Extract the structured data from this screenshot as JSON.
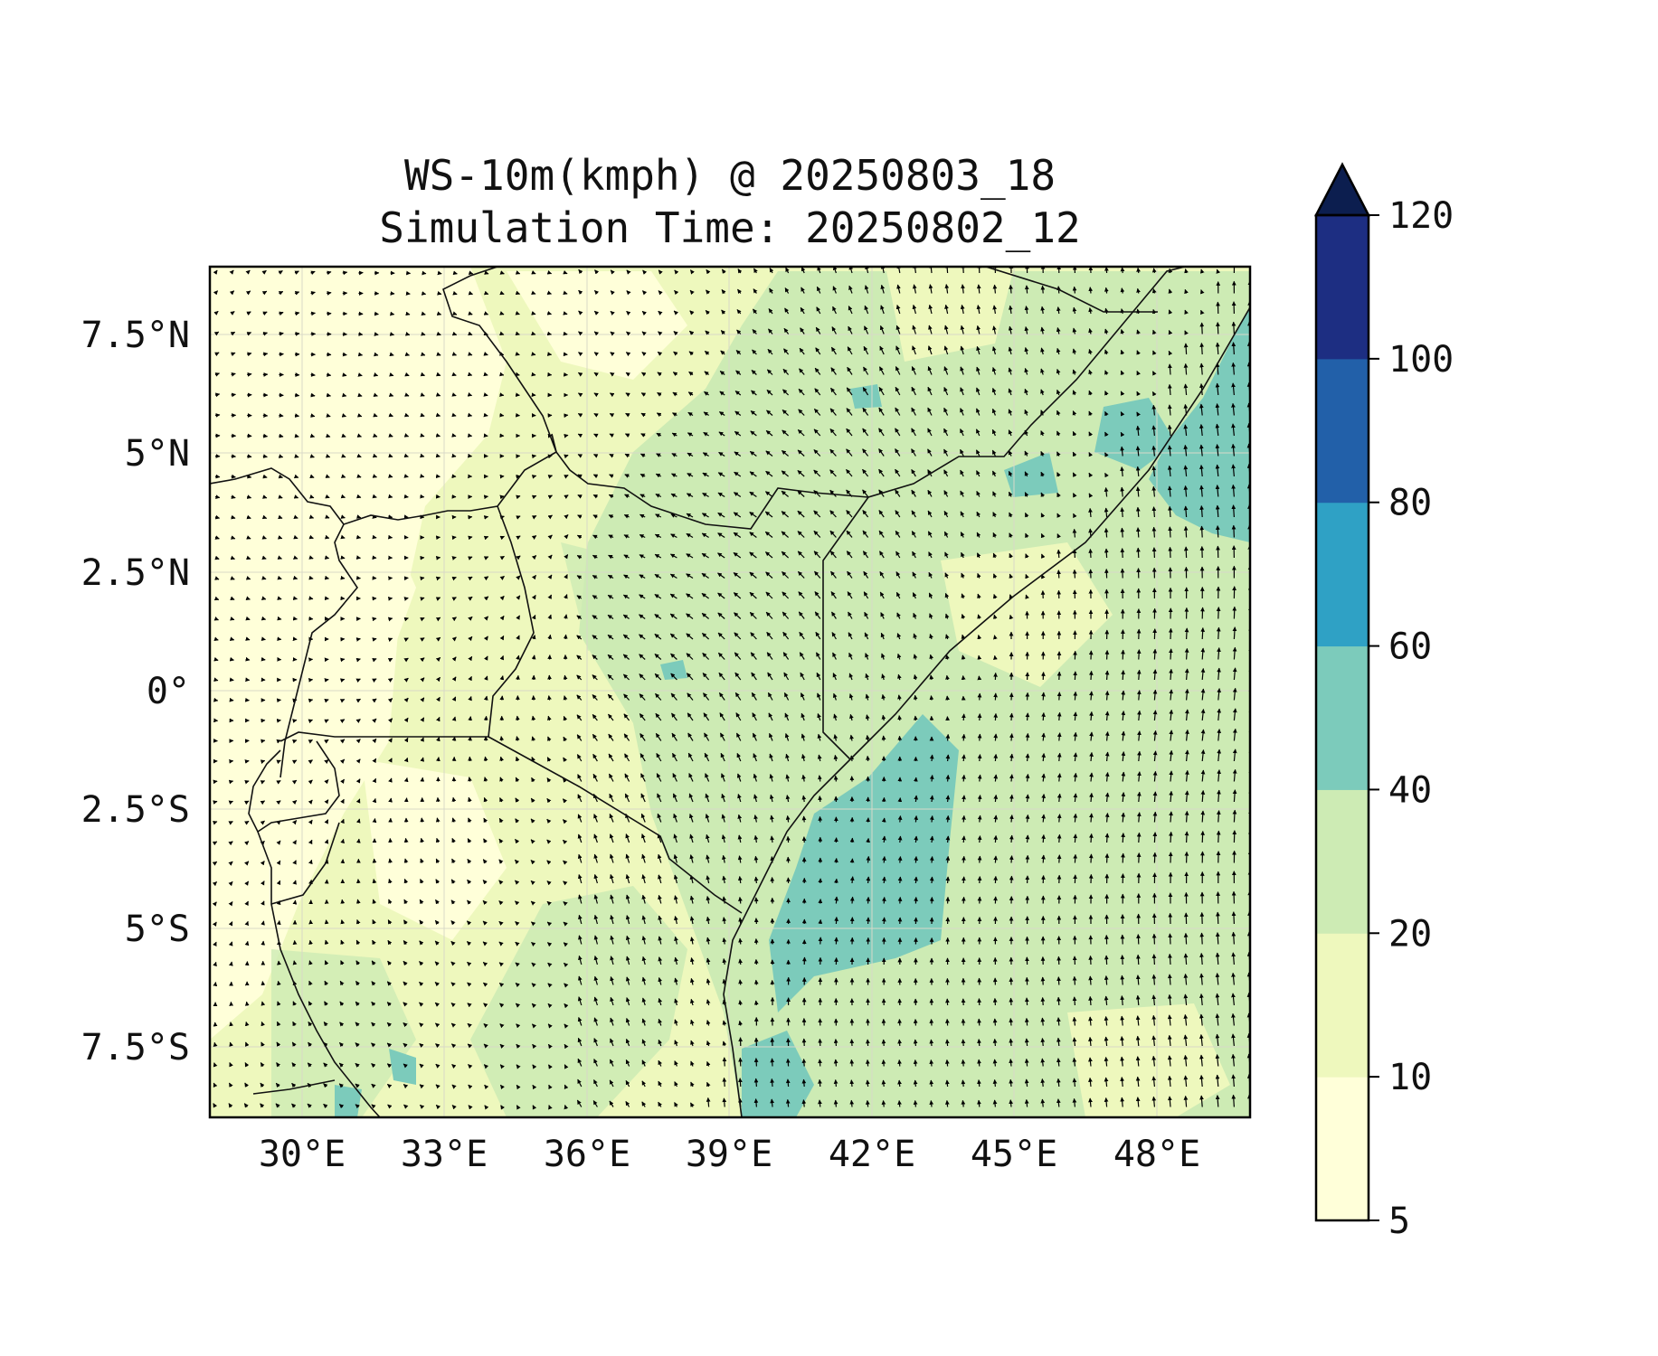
{
  "title": {
    "line1": "WS-10m(kmph) @ 20250803_18",
    "line2": "Simulation Time: 20250802_12"
  },
  "map": {
    "projection": "PlateCarree",
    "lon_range": [
      27.5,
      50.2
    ],
    "lat_range": [
      -9.0,
      8.9
    ],
    "x_ticks": [
      {
        "value": 30,
        "label": "30°E"
      },
      {
        "value": 33,
        "label": "33°E"
      },
      {
        "value": 36,
        "label": "36°E"
      },
      {
        "value": 39,
        "label": "39°E"
      },
      {
        "value": 42,
        "label": "42°E"
      },
      {
        "value": 45,
        "label": "45°E"
      },
      {
        "value": 48,
        "label": "48°E"
      }
    ],
    "y_ticks": [
      {
        "value": 7.5,
        "label": "7.5°N"
      },
      {
        "value": 5,
        "label": "5°N"
      },
      {
        "value": 2.5,
        "label": "2.5°N"
      },
      {
        "value": 0,
        "label": "0°"
      },
      {
        "value": -2.5,
        "label": "2.5°S"
      },
      {
        "value": -5,
        "label": "5°S"
      },
      {
        "value": -7.5,
        "label": "7.5°S"
      }
    ],
    "gridlines": true,
    "features": [
      "coastline",
      "country-borders",
      "wind-vectors",
      "filled-contours"
    ]
  },
  "colorbar": {
    "levels": [
      "5",
      "10",
      "20",
      "40",
      "60",
      "80",
      "100",
      "120"
    ],
    "colors": [
      "#ffffd9",
      "#eef8bd",
      "#cdebb4",
      "#7ccbbb",
      "#2fa1c5",
      "#2260a9",
      "#1d2e82"
    ],
    "extend_color": "#0c1e4f",
    "extend": "max"
  }
}
